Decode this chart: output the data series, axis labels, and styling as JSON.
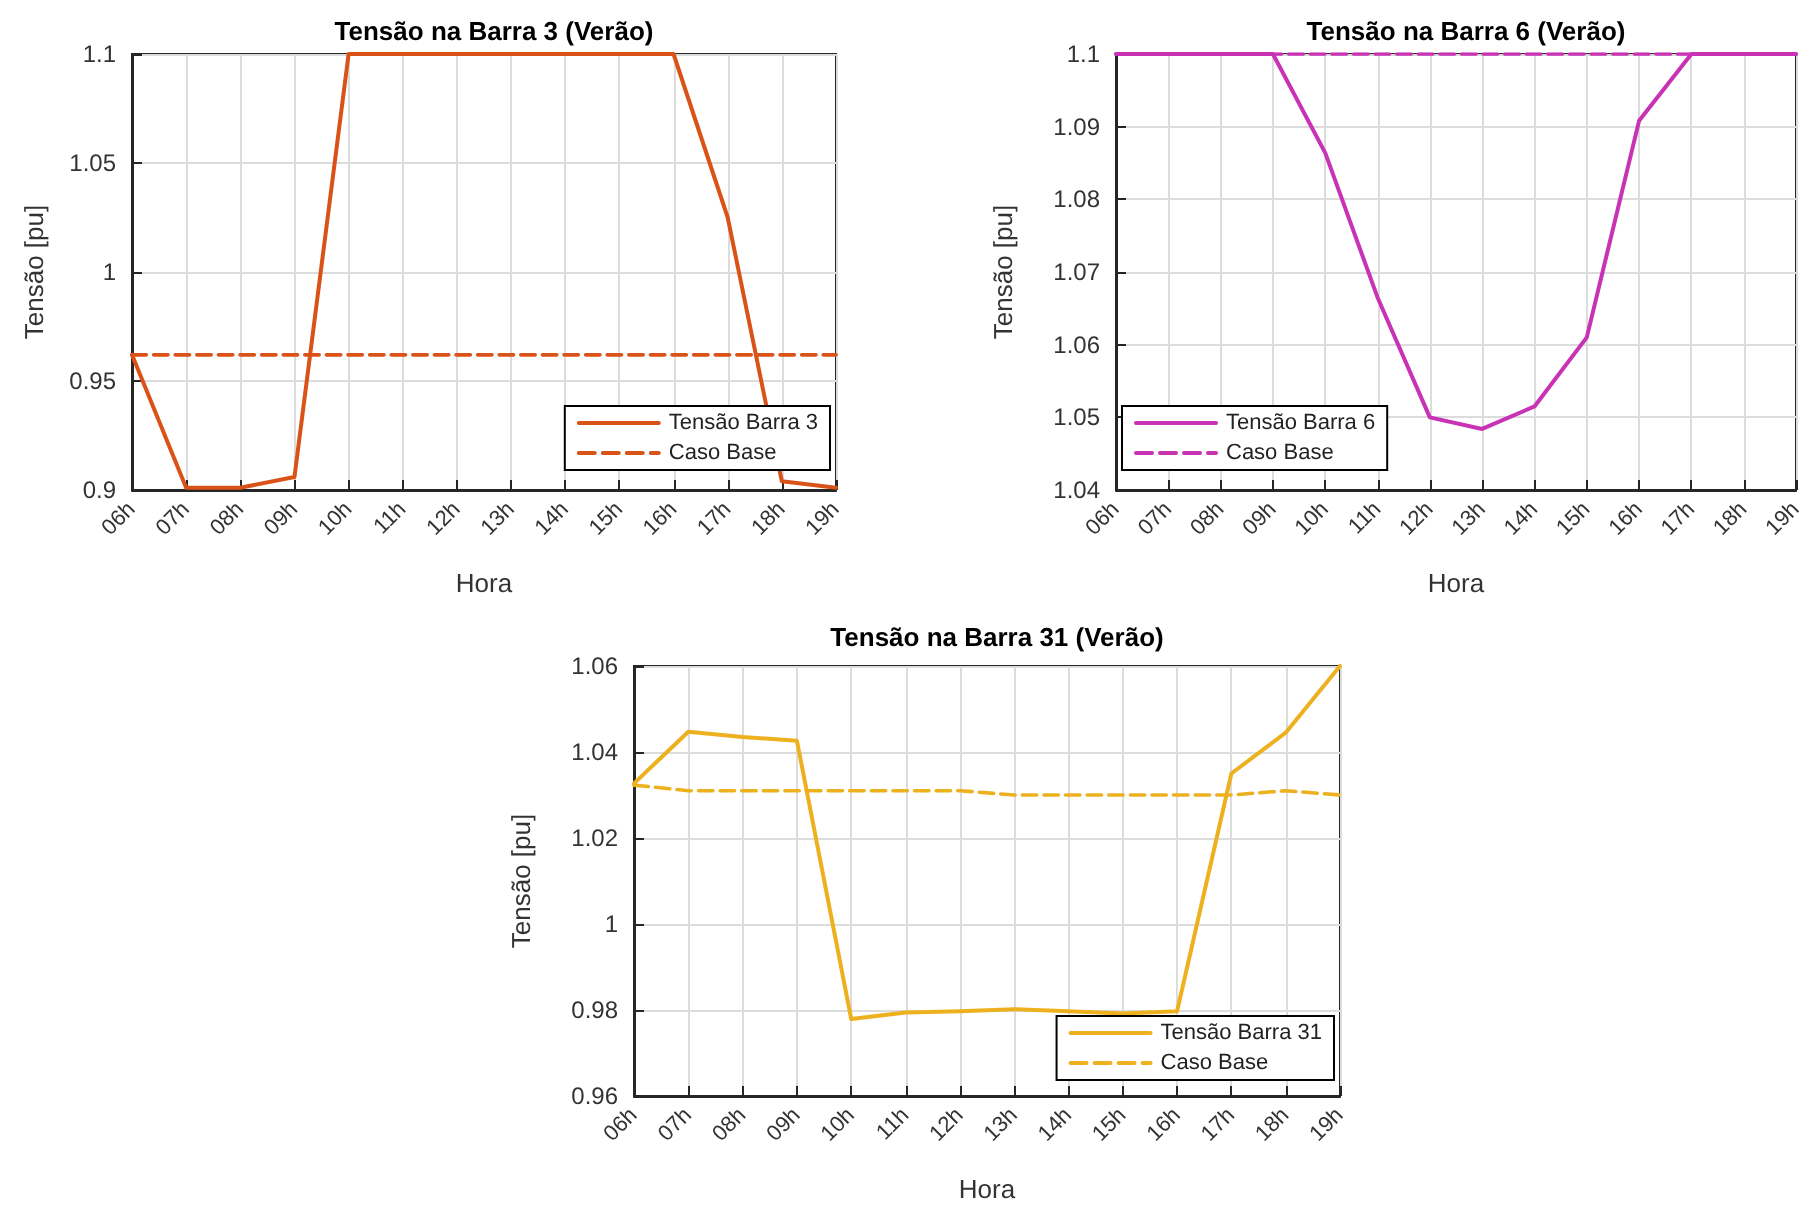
{
  "chart_data": [
    {
      "type": "line",
      "title": "Tensão na Barra 3 (Verão)",
      "xlabel": "Hora",
      "ylabel": "Tensão [pu]",
      "categories": [
        "06h",
        "07h",
        "08h",
        "09h",
        "10h",
        "11h",
        "12h",
        "13h",
        "14h",
        "15h",
        "16h",
        "17h",
        "18h",
        "19h"
      ],
      "series": [
        {
          "name": "Tensão Barra 3",
          "color": "#d95319",
          "line_style": "solid",
          "values": [
            0.962,
            0.901,
            0.901,
            0.906,
            1.1,
            1.1,
            1.1,
            1.1,
            1.1,
            1.1,
            1.1,
            1.025,
            0.904,
            0.901
          ]
        },
        {
          "name": "Caso Base",
          "color": "#d95319",
          "line_style": "dashed",
          "values": [
            0.962,
            0.962,
            0.962,
            0.962,
            0.962,
            0.962,
            0.962,
            0.962,
            0.962,
            0.962,
            0.962,
            0.962,
            0.962,
            0.962
          ]
        }
      ],
      "ylim": [
        0.9,
        1.1
      ],
      "yticks": [
        0.9,
        0.95,
        1,
        1.05,
        1.1
      ],
      "grid": true,
      "legend": "bottom right"
    },
    {
      "type": "line",
      "title": "Tensão na Barra 6 (Verão)",
      "xlabel": "Hora",
      "ylabel": "Tensão [pu]",
      "categories": [
        "06h",
        "07h",
        "08h",
        "09h",
        "10h",
        "11h",
        "12h",
        "13h",
        "14h",
        "15h",
        "16h",
        "17h",
        "18h",
        "19h"
      ],
      "series": [
        {
          "name": "Tensão Barra 6",
          "color": "#c832b4",
          "line_style": "solid",
          "values": [
            1.1,
            1.1,
            1.1,
            1.1,
            1.0864,
            1.0665,
            1.05,
            1.0484,
            1.0515,
            1.061,
            1.0908,
            1.1,
            1.1,
            1.1
          ]
        },
        {
          "name": "Caso Base",
          "color": "#c832b4",
          "line_style": "dashed",
          "values": [
            1.1,
            1.1,
            1.1,
            1.1,
            1.1,
            1.1,
            1.1,
            1.1,
            1.1,
            1.1,
            1.1,
            1.1,
            1.1,
            1.1
          ]
        }
      ],
      "ylim": [
        1.04,
        1.1
      ],
      "yticks": [
        1.04,
        1.05,
        1.06,
        1.07,
        1.08,
        1.09,
        1.1
      ],
      "grid": true,
      "legend": "bottom left"
    },
    {
      "type": "line",
      "title": "Tensão na Barra 31 (Verão)",
      "xlabel": "Hora",
      "ylabel": "Tensão [pu]",
      "categories": [
        "06h",
        "07h",
        "08h",
        "09h",
        "10h",
        "11h",
        "12h",
        "13h",
        "14h",
        "15h",
        "16h",
        "17h",
        "18h",
        "19h"
      ],
      "series": [
        {
          "name": "Tensão Barra 31",
          "color": "#edb120",
          "line_style": "solid",
          "values": [
            1.0327,
            1.0447,
            1.0435,
            1.0426,
            0.9779,
            0.9794,
            0.9797,
            0.9802,
            0.9797,
            0.9792,
            0.9797,
            1.035,
            1.0445,
            1.06
          ]
        },
        {
          "name": "Caso Base",
          "color": "#edb120",
          "line_style": "dashed",
          "values": [
            1.0323,
            1.031,
            1.031,
            1.031,
            1.031,
            1.031,
            1.031,
            1.03,
            1.03,
            1.03,
            1.03,
            1.03,
            1.031,
            1.03
          ]
        }
      ],
      "ylim": [
        0.96,
        1.06
      ],
      "yticks": [
        0.96,
        0.98,
        1,
        1.02,
        1.04,
        1.06
      ],
      "grid": true,
      "legend": "bottom right"
    }
  ]
}
